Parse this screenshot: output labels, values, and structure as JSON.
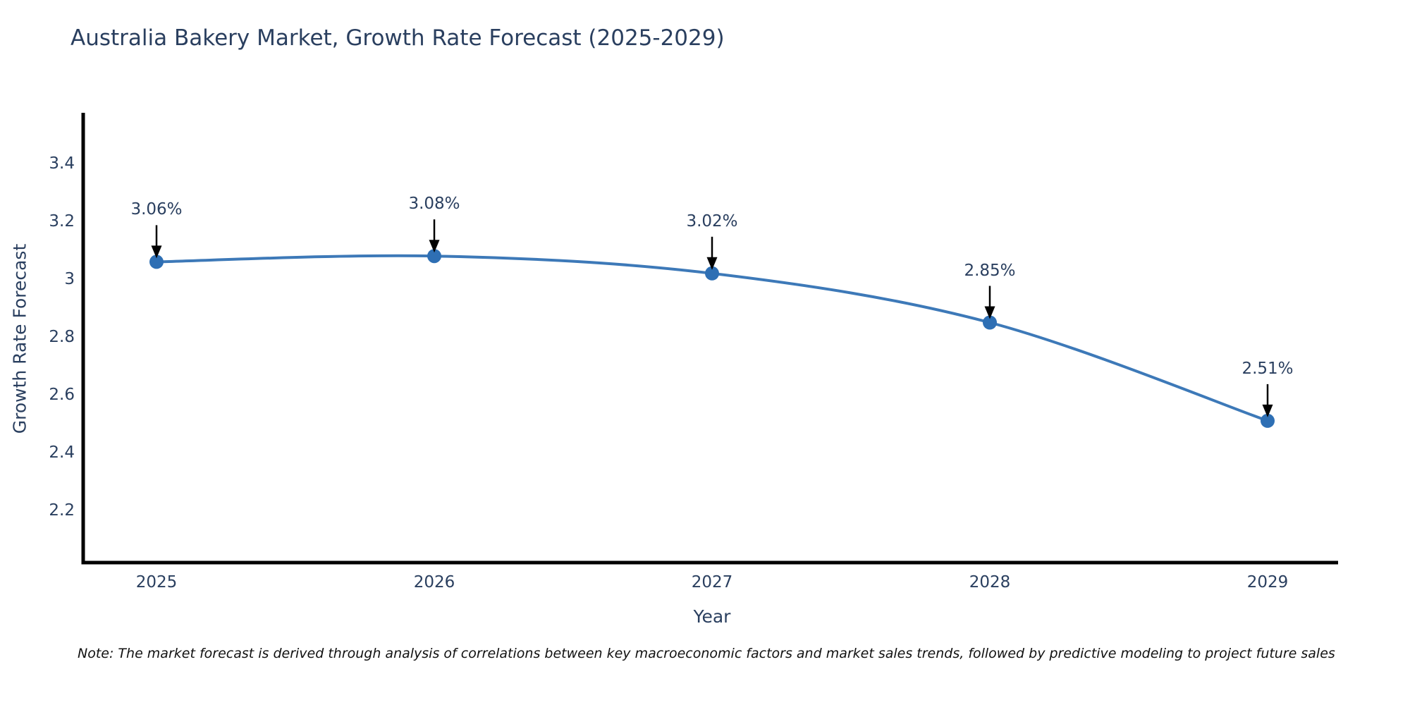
{
  "title": "Australia Bakery Market, Growth Rate Forecast (2025-2029)",
  "note": "Note: The market forecast is derived through analysis of correlations between key macroeconomic factors and market sales trends, followed by predictive modeling to project future sales",
  "chart_data": {
    "type": "line",
    "line_shape": "spline",
    "title": "Australia Bakery Market, Growth Rate Forecast (2025-2029)",
    "xlabel": "Year",
    "ylabel": "Growth Rate Forecast",
    "categories": [
      "2025",
      "2026",
      "2027",
      "2028",
      "2029"
    ],
    "values": [
      3.06,
      3.08,
      3.02,
      2.85,
      2.51
    ],
    "point_labels": [
      "3.06%",
      "3.08%",
      "3.02%",
      "2.85%",
      "2.51%"
    ],
    "y_tick_labels": [
      "3.4",
      "3.2",
      "3",
      "2.8",
      "2.6",
      "2.4",
      "2.2"
    ],
    "y_ticks": [
      3.4,
      3.2,
      3.0,
      2.8,
      2.6,
      2.4,
      2.2
    ],
    "ylim": [
      2.0,
      3.57
    ],
    "grid": false,
    "legend": false,
    "annotations_arrow": "down",
    "colors": {
      "line": "#3d79b8",
      "marker": "#2e6fb4",
      "axis": "#000000",
      "text": "#2a3f5f",
      "note_text": "#111111",
      "arrow": "#000000",
      "background": "#ffffff"
    }
  }
}
